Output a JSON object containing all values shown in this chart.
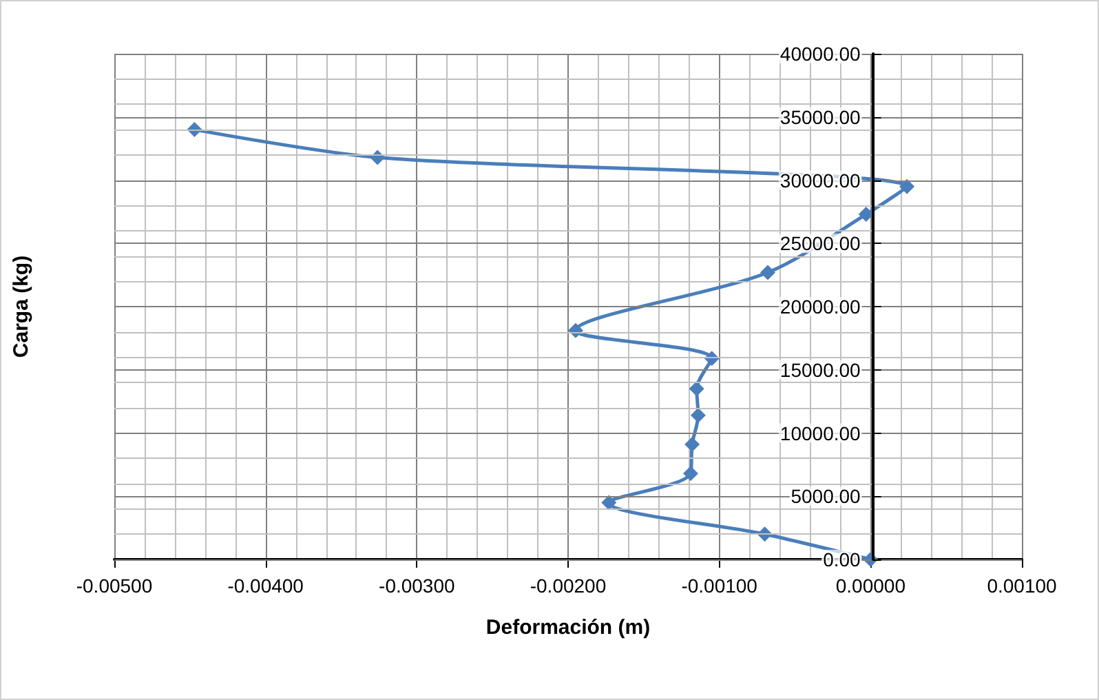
{
  "chart_data": {
    "type": "line",
    "xlabel": "Deformación (m)",
    "ylabel": "Carga (kg)",
    "x": [
      0,
      -0.0007,
      -0.00173,
      -0.00119,
      -0.00118,
      -0.00114,
      -0.00115,
      -0.00105,
      -0.00195,
      -0.00068,
      -3e-05,
      0.00024,
      -0.00326,
      -0.00447
    ],
    "series": [
      {
        "color": "#4a7ebb",
        "values": [
          0,
          2000,
          4500,
          6800,
          9100,
          11400,
          13500,
          15900,
          18100,
          22700,
          27300,
          29500,
          31800,
          34000
        ]
      }
    ],
    "xlim": [
      -0.005,
      0.001
    ],
    "xticks": [
      {
        "value": -0.005,
        "label": "-0.00500"
      },
      {
        "value": -0.004,
        "label": "-0.00400"
      },
      {
        "value": -0.003,
        "label": "-0.00300"
      },
      {
        "value": -0.002,
        "label": "-0.00200"
      },
      {
        "value": -0.001,
        "label": "-0.00100"
      },
      {
        "value": 0,
        "label": "0.00000"
      },
      {
        "value": 0.001,
        "label": "0.00100"
      }
    ],
    "ylim": [
      0,
      40000
    ],
    "yticks": [
      {
        "value": 0,
        "label": "0.00"
      },
      {
        "value": 5000,
        "label": "5000.00"
      },
      {
        "value": 10000,
        "label": "10000.00"
      },
      {
        "value": 15000,
        "label": "15000.00"
      },
      {
        "value": 20000,
        "label": "20000.00"
      },
      {
        "value": 25000,
        "label": "25000.00"
      },
      {
        "value": 30000,
        "label": "30000.00"
      },
      {
        "value": 35000,
        "label": "35000.00"
      },
      {
        "value": 40000,
        "label": "40000.00"
      }
    ],
    "grid": true,
    "marker": "diamond",
    "line_style": "solid"
  }
}
